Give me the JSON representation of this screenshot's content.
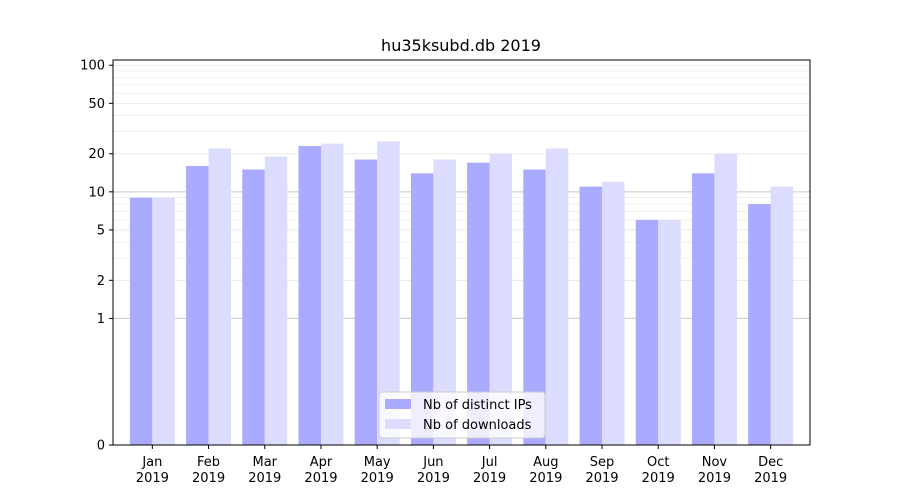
{
  "chart_data": {
    "type": "bar",
    "title": "hu35ksubd.db 2019",
    "xlabel": "",
    "ylabel": "",
    "yscale": "symlog",
    "ylim": [
      0,
      110
    ],
    "yticks": [
      0,
      1,
      2,
      5,
      10,
      20,
      50,
      100
    ],
    "ytick_labels": [
      "0",
      "1",
      "2",
      "5",
      "10",
      "20",
      "50",
      "100"
    ],
    "categories": [
      [
        "Jan",
        "2019"
      ],
      [
        "Feb",
        "2019"
      ],
      [
        "Mar",
        "2019"
      ],
      [
        "Apr",
        "2019"
      ],
      [
        "May",
        "2019"
      ],
      [
        "Jun",
        "2019"
      ],
      [
        "Jul",
        "2019"
      ],
      [
        "Aug",
        "2019"
      ],
      [
        "Sep",
        "2019"
      ],
      [
        "Oct",
        "2019"
      ],
      [
        "Nov",
        "2019"
      ],
      [
        "Dec",
        "2019"
      ]
    ],
    "series": [
      {
        "name": "Nb of distinct IPs",
        "color": "#aaaaff",
        "values": [
          9,
          16,
          15,
          23,
          18,
          14,
          17,
          15,
          11,
          6,
          14,
          8
        ]
      },
      {
        "name": "Nb of downloads",
        "color": "#dcdcff",
        "values": [
          9,
          22,
          19,
          24,
          25,
          18,
          20,
          22,
          12,
          6,
          20,
          11
        ]
      }
    ],
    "grid": true,
    "legend_position": "bottom-center"
  }
}
